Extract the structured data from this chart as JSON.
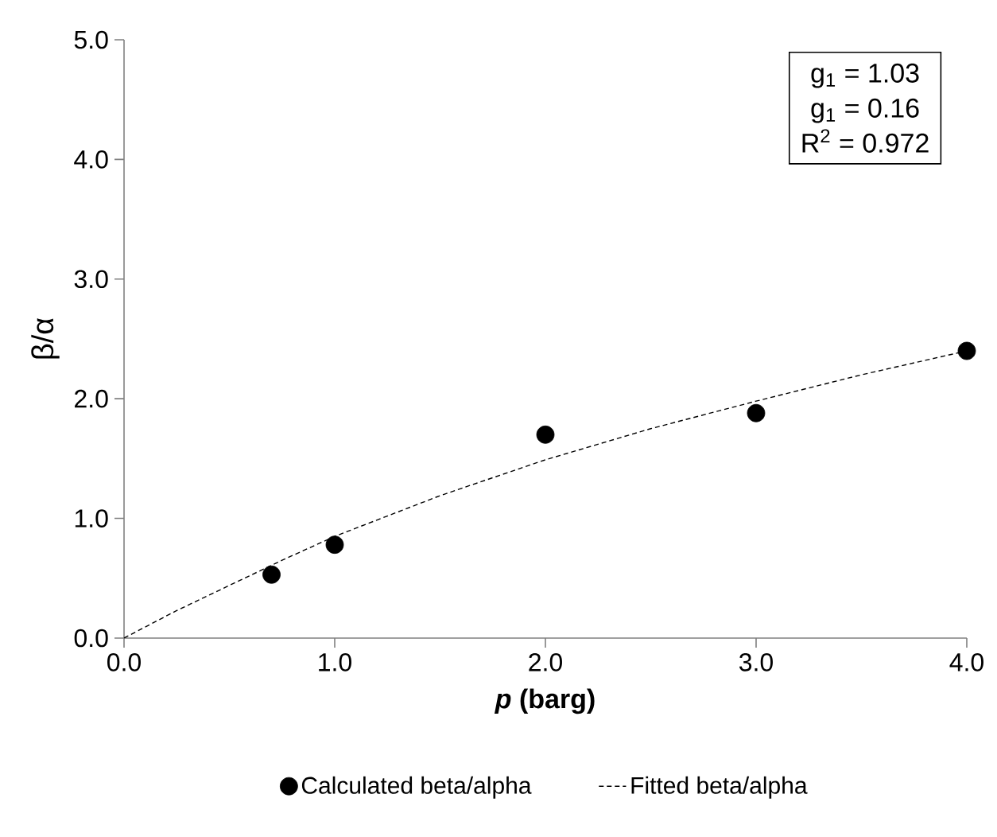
{
  "chart_data": {
    "type": "scatter",
    "xlabel": "*p* (barg)",
    "ylabel": "β/α",
    "xlim": [
      0,
      4
    ],
    "ylim": [
      0,
      5
    ],
    "xticks": [
      {
        "value": 0,
        "label": "0.0"
      },
      {
        "value": 1,
        "label": "1.0"
      },
      {
        "value": 2,
        "label": "2.0"
      },
      {
        "value": 3,
        "label": "3.0"
      },
      {
        "value": 4,
        "label": "4.0"
      }
    ],
    "yticks": [
      {
        "value": 0,
        "label": "0.0"
      },
      {
        "value": 1,
        "label": "1.0"
      },
      {
        "value": 2,
        "label": "2.0"
      },
      {
        "value": 3,
        "label": "3.0"
      },
      {
        "value": 4,
        "label": "4.0"
      },
      {
        "value": 5,
        "label": "5.0"
      }
    ],
    "series": [
      {
        "name": "Calculated beta/alpha",
        "color": "#000000",
        "marker": "circle",
        "x": [
          0.7,
          1.0,
          2.0,
          3.0,
          4.0
        ],
        "values": [
          0.53,
          0.78,
          1.7,
          1.88,
          2.4
        ]
      },
      {
        "name": "Fitted beta/alpha",
        "type": "line",
        "color": "#000000",
        "marker": "none",
        "line_style": "dashed",
        "x": [
          0,
          0.25,
          0.5,
          0.75,
          1.0,
          1.5,
          2.0,
          2.5,
          3.0,
          3.5,
          4.0
        ],
        "values": [
          0,
          0.23,
          0.44,
          0.65,
          0.85,
          1.19,
          1.49,
          1.75,
          1.98,
          2.2,
          2.4
        ]
      }
    ],
    "annotations": [
      "g$_{1}$ = 1.03",
      "g$_{1}$ = 0.16",
      "R$^{2}$ = 0.972"
    ],
    "legend": "bottom",
    "grid": false
  }
}
